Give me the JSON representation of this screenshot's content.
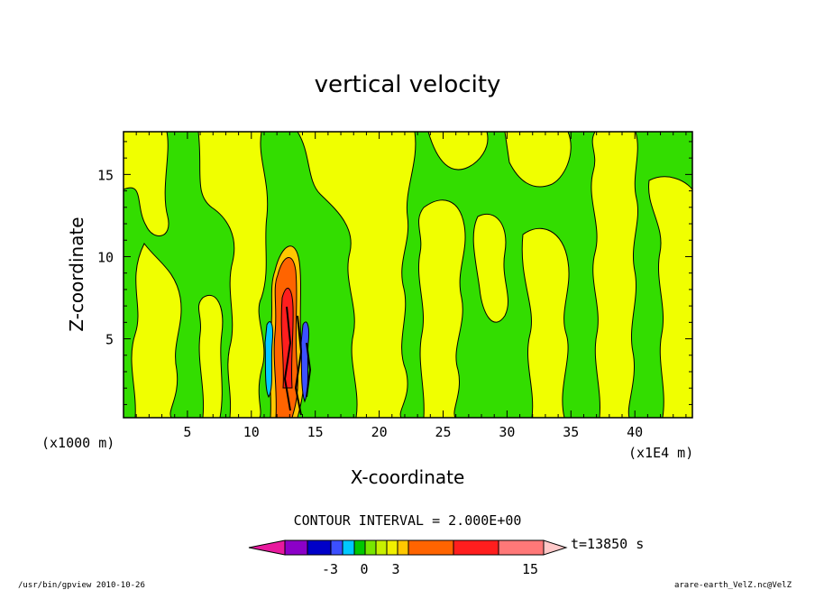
{
  "chart_data": {
    "type": "heatmap",
    "title": "vertical velocity",
    "xlabel": "X-coordinate",
    "ylabel": "Z-coordinate",
    "x_unit_label": "(x1E4 m)",
    "y_unit_label": "(x1000 m)",
    "x_ticks": [
      5,
      10,
      15,
      20,
      25,
      30,
      35,
      40
    ],
    "y_ticks": [
      5,
      10,
      15
    ],
    "xlim": [
      0,
      44.5
    ],
    "ylim": [
      0.2,
      17.6
    ],
    "contour_interval_label": "CONTOUR INTERVAL = 2.000E+00",
    "time_label": "t=13850 s",
    "colorbar": {
      "colors": [
        "#e8199e",
        "#8c00c8",
        "#0000c8",
        "#3c50ff",
        "#00c8ff",
        "#00c800",
        "#78e600",
        "#c8f000",
        "#f0f000",
        "#ffc800",
        "#ff6400",
        "#ff1e1e",
        "#ff7878",
        "#ffc8c8"
      ],
      "tick_labels": [
        "-3",
        "0",
        "3",
        "15"
      ]
    },
    "footer_left": "/usr/bin/gpview   2010-10-26",
    "footer_right": "arare-earth_VelZ.nc@VelZ"
  }
}
